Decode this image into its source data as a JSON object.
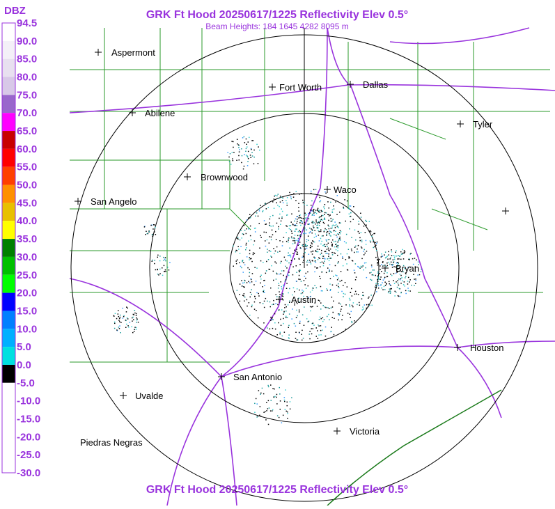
{
  "header": {
    "title": "GRK Ft Hood 20250617/1225 Reflectivity Elev 0.5°",
    "subtitle": "Beam Heights: 184 1645 4282 8095 m"
  },
  "footer": {
    "title": "GRK Ft Hood 20250617/1225 Reflectivity Elev 0.5°"
  },
  "legend": {
    "unit": "DBZ",
    "labels": [
      "94.5",
      "90.0",
      "85.0",
      "80.0",
      "75.0",
      "70.0",
      "65.0",
      "60.0",
      "55.0",
      "50.0",
      "45.0",
      "40.0",
      "35.0",
      "30.0",
      "25.0",
      "20.0",
      "15.0",
      "10.0",
      "5.0",
      "0.0",
      "-5.0",
      "-10.0",
      "-15.0",
      "-20.0",
      "-25.0",
      "-30.0"
    ],
    "colors": [
      "#ffffff",
      "#f4f0f8",
      "#e8e0f0",
      "#d8c8e8",
      "#9966cc",
      "#ff00ff",
      "#c80000",
      "#ff0000",
      "#ff4000",
      "#ff9000",
      "#e8c000",
      "#ffff00",
      "#008000",
      "#00c000",
      "#00ff00",
      "#0000ff",
      "#0080ff",
      "#00b0ff",
      "#00e0e0",
      "#000000",
      "#ffffff",
      "#ffffff",
      "#ffffff",
      "#ffffff",
      "#ffffff"
    ]
  },
  "cities": [
    {
      "name": "Aspermont"
    },
    {
      "name": "Fort Worth"
    },
    {
      "name": "Dallas"
    },
    {
      "name": "Abilene"
    },
    {
      "name": "Tyler"
    },
    {
      "name": "Brownwood"
    },
    {
      "name": "Waco"
    },
    {
      "name": "San Angelo"
    },
    {
      "name": "Bryan"
    },
    {
      "name": "Austin"
    },
    {
      "name": "Houston"
    },
    {
      "name": "San Antonio"
    },
    {
      "name": "Uvalde"
    },
    {
      "name": "Victoria"
    },
    {
      "name": "Piedras Negras"
    }
  ]
}
